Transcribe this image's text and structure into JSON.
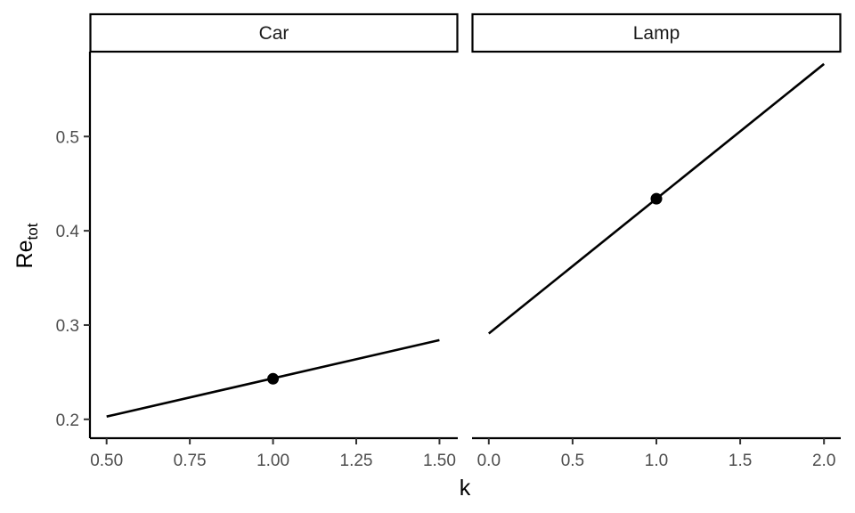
{
  "chart_data": {
    "type": "line",
    "xlabel": "k",
    "ylabel": {
      "main": "Re",
      "subscript": "tot"
    },
    "ylim": [
      0.18,
      0.59
    ],
    "y_ticks": [
      0.2,
      0.3,
      0.4,
      0.5
    ],
    "y_tick_labels": [
      "0.2",
      "0.3",
      "0.4",
      "0.5"
    ],
    "grid": false,
    "panels": [
      {
        "strip": "Car",
        "xlim": [
          0.45,
          1.555
        ],
        "x_ticks": [
          0.5,
          0.75,
          1.0,
          1.25,
          1.5
        ],
        "x_tick_labels": [
          "0.50",
          "0.75",
          "1.00",
          "1.25",
          "1.50"
        ],
        "line": {
          "x": [
            0.5,
            1.5
          ],
          "y": [
            0.203,
            0.284
          ]
        },
        "point": {
          "x": 1.0,
          "y": 0.243
        }
      },
      {
        "strip": "Lamp",
        "xlim": [
          -0.1,
          2.1
        ],
        "x_ticks": [
          0.0,
          0.5,
          1.0,
          1.5,
          2.0
        ],
        "x_tick_labels": [
          "0.0",
          "0.5",
          "1.0",
          "1.5",
          "2.0"
        ],
        "line": {
          "x": [
            0.0,
            2.0
          ],
          "y": [
            0.291,
            0.577
          ]
        },
        "point": {
          "x": 1.0,
          "y": 0.434
        }
      }
    ],
    "colors": {
      "line": "#000000",
      "point": "#000000",
      "axis": "#000000",
      "strip_fill": "#ffffff"
    }
  }
}
